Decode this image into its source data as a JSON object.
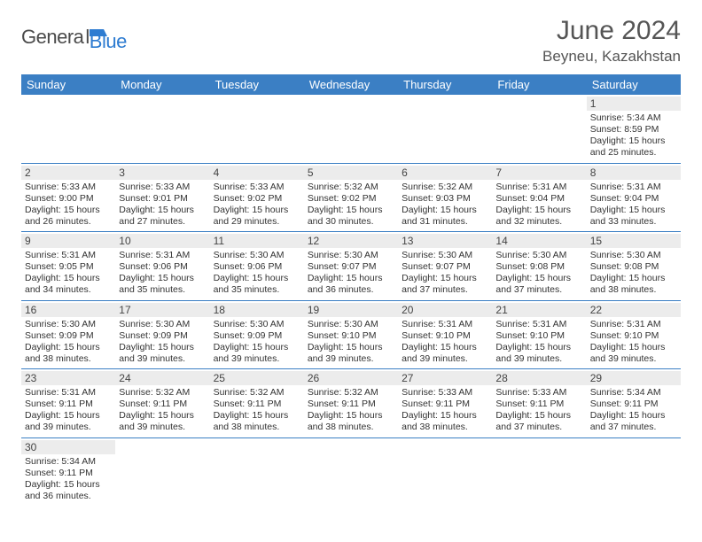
{
  "logo": {
    "text_dark": "Genera",
    "text_blue": "Blue"
  },
  "title": "June 2024",
  "location": "Beyneu, Kazakhstan",
  "colors": {
    "header_bg": "#3b7fc4",
    "header_fg": "#ffffff",
    "daynum_bg": "#ececec",
    "border": "#3b7fc4",
    "logo_blue": "#2e7cd1"
  },
  "weekdays": [
    "Sunday",
    "Monday",
    "Tuesday",
    "Wednesday",
    "Thursday",
    "Friday",
    "Saturday"
  ],
  "weeks": [
    [
      null,
      null,
      null,
      null,
      null,
      null,
      {
        "n": "1",
        "sr": "Sunrise: 5:34 AM",
        "ss": "Sunset: 8:59 PM",
        "dl": "Daylight: 15 hours and 25 minutes."
      }
    ],
    [
      {
        "n": "2",
        "sr": "Sunrise: 5:33 AM",
        "ss": "Sunset: 9:00 PM",
        "dl": "Daylight: 15 hours and 26 minutes."
      },
      {
        "n": "3",
        "sr": "Sunrise: 5:33 AM",
        "ss": "Sunset: 9:01 PM",
        "dl": "Daylight: 15 hours and 27 minutes."
      },
      {
        "n": "4",
        "sr": "Sunrise: 5:33 AM",
        "ss": "Sunset: 9:02 PM",
        "dl": "Daylight: 15 hours and 29 minutes."
      },
      {
        "n": "5",
        "sr": "Sunrise: 5:32 AM",
        "ss": "Sunset: 9:02 PM",
        "dl": "Daylight: 15 hours and 30 minutes."
      },
      {
        "n": "6",
        "sr": "Sunrise: 5:32 AM",
        "ss": "Sunset: 9:03 PM",
        "dl": "Daylight: 15 hours and 31 minutes."
      },
      {
        "n": "7",
        "sr": "Sunrise: 5:31 AM",
        "ss": "Sunset: 9:04 PM",
        "dl": "Daylight: 15 hours and 32 minutes."
      },
      {
        "n": "8",
        "sr": "Sunrise: 5:31 AM",
        "ss": "Sunset: 9:04 PM",
        "dl": "Daylight: 15 hours and 33 minutes."
      }
    ],
    [
      {
        "n": "9",
        "sr": "Sunrise: 5:31 AM",
        "ss": "Sunset: 9:05 PM",
        "dl": "Daylight: 15 hours and 34 minutes."
      },
      {
        "n": "10",
        "sr": "Sunrise: 5:31 AM",
        "ss": "Sunset: 9:06 PM",
        "dl": "Daylight: 15 hours and 35 minutes."
      },
      {
        "n": "11",
        "sr": "Sunrise: 5:30 AM",
        "ss": "Sunset: 9:06 PM",
        "dl": "Daylight: 15 hours and 35 minutes."
      },
      {
        "n": "12",
        "sr": "Sunrise: 5:30 AM",
        "ss": "Sunset: 9:07 PM",
        "dl": "Daylight: 15 hours and 36 minutes."
      },
      {
        "n": "13",
        "sr": "Sunrise: 5:30 AM",
        "ss": "Sunset: 9:07 PM",
        "dl": "Daylight: 15 hours and 37 minutes."
      },
      {
        "n": "14",
        "sr": "Sunrise: 5:30 AM",
        "ss": "Sunset: 9:08 PM",
        "dl": "Daylight: 15 hours and 37 minutes."
      },
      {
        "n": "15",
        "sr": "Sunrise: 5:30 AM",
        "ss": "Sunset: 9:08 PM",
        "dl": "Daylight: 15 hours and 38 minutes."
      }
    ],
    [
      {
        "n": "16",
        "sr": "Sunrise: 5:30 AM",
        "ss": "Sunset: 9:09 PM",
        "dl": "Daylight: 15 hours and 38 minutes."
      },
      {
        "n": "17",
        "sr": "Sunrise: 5:30 AM",
        "ss": "Sunset: 9:09 PM",
        "dl": "Daylight: 15 hours and 39 minutes."
      },
      {
        "n": "18",
        "sr": "Sunrise: 5:30 AM",
        "ss": "Sunset: 9:09 PM",
        "dl": "Daylight: 15 hours and 39 minutes."
      },
      {
        "n": "19",
        "sr": "Sunrise: 5:30 AM",
        "ss": "Sunset: 9:10 PM",
        "dl": "Daylight: 15 hours and 39 minutes."
      },
      {
        "n": "20",
        "sr": "Sunrise: 5:31 AM",
        "ss": "Sunset: 9:10 PM",
        "dl": "Daylight: 15 hours and 39 minutes."
      },
      {
        "n": "21",
        "sr": "Sunrise: 5:31 AM",
        "ss": "Sunset: 9:10 PM",
        "dl": "Daylight: 15 hours and 39 minutes."
      },
      {
        "n": "22",
        "sr": "Sunrise: 5:31 AM",
        "ss": "Sunset: 9:10 PM",
        "dl": "Daylight: 15 hours and 39 minutes."
      }
    ],
    [
      {
        "n": "23",
        "sr": "Sunrise: 5:31 AM",
        "ss": "Sunset: 9:11 PM",
        "dl": "Daylight: 15 hours and 39 minutes."
      },
      {
        "n": "24",
        "sr": "Sunrise: 5:32 AM",
        "ss": "Sunset: 9:11 PM",
        "dl": "Daylight: 15 hours and 39 minutes."
      },
      {
        "n": "25",
        "sr": "Sunrise: 5:32 AM",
        "ss": "Sunset: 9:11 PM",
        "dl": "Daylight: 15 hours and 38 minutes."
      },
      {
        "n": "26",
        "sr": "Sunrise: 5:32 AM",
        "ss": "Sunset: 9:11 PM",
        "dl": "Daylight: 15 hours and 38 minutes."
      },
      {
        "n": "27",
        "sr": "Sunrise: 5:33 AM",
        "ss": "Sunset: 9:11 PM",
        "dl": "Daylight: 15 hours and 38 minutes."
      },
      {
        "n": "28",
        "sr": "Sunrise: 5:33 AM",
        "ss": "Sunset: 9:11 PM",
        "dl": "Daylight: 15 hours and 37 minutes."
      },
      {
        "n": "29",
        "sr": "Sunrise: 5:34 AM",
        "ss": "Sunset: 9:11 PM",
        "dl": "Daylight: 15 hours and 37 minutes."
      }
    ],
    [
      {
        "n": "30",
        "sr": "Sunrise: 5:34 AM",
        "ss": "Sunset: 9:11 PM",
        "dl": "Daylight: 15 hours and 36 minutes."
      },
      null,
      null,
      null,
      null,
      null,
      null
    ]
  ]
}
